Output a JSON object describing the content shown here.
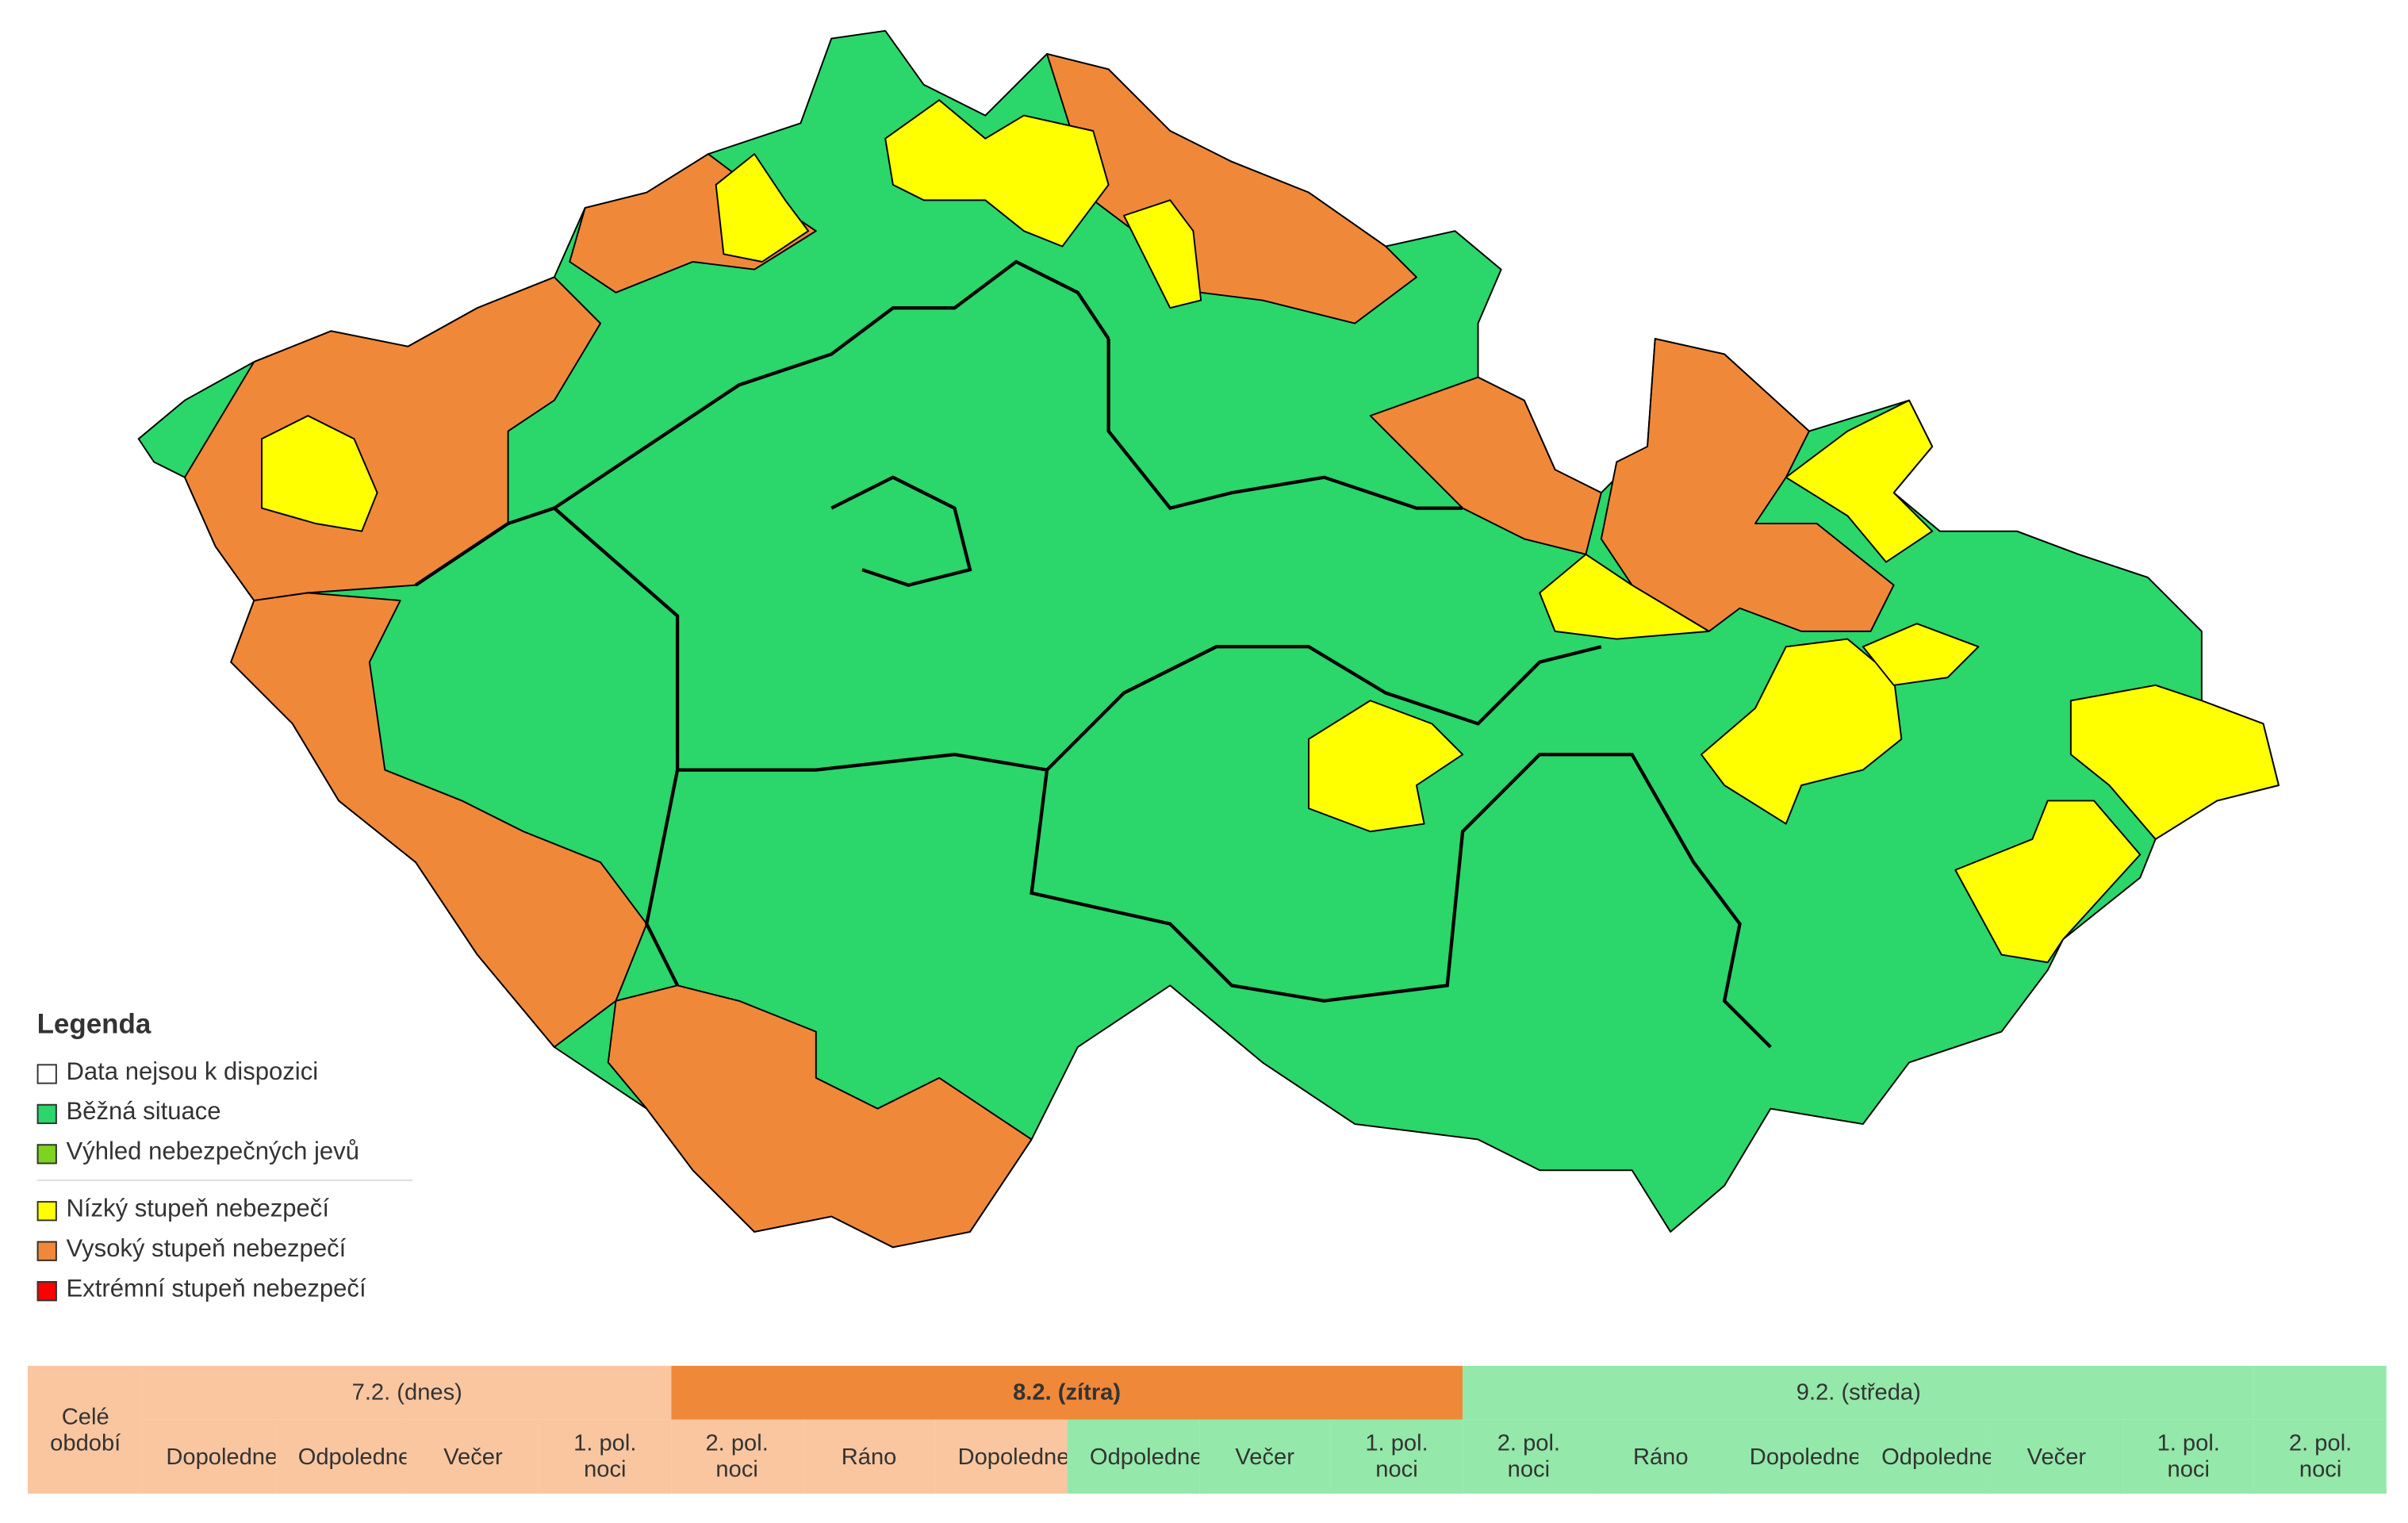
{
  "legend": {
    "title": "Legenda",
    "items": [
      {
        "label": "Data nejsou k dispozici",
        "color": "#ffffff"
      },
      {
        "label": "Běžná situace",
        "color": "#2bd66a"
      },
      {
        "label": "Výhled nebezpečných jevů",
        "color": "#7ed321"
      },
      {
        "label": "Nízký stupeň nebezpečí",
        "color": "#ffff00"
      },
      {
        "label": "Vysoký stupeň nebezpečí",
        "color": "#f0883a"
      },
      {
        "label": "Extrémní stupeň nebezpečí",
        "color": "#ff0000"
      }
    ]
  },
  "table": {
    "corner": "Celé období",
    "days": [
      {
        "label": "7.2. (dnes)"
      },
      {
        "label": "8.2. (zítra)"
      },
      {
        "label": "9.2. (středa)"
      }
    ],
    "periods": [
      "Dopoledne",
      "Odpoledne",
      "Večer",
      "1. pol. noci",
      "2. pol. noci",
      "Ráno",
      "Dopoledne",
      "Odpoledne",
      "Večer",
      "1. pol. noci",
      "2. pol. noci",
      "Ráno",
      "Dopoledne",
      "Odpoledne",
      "Večer",
      "1. pol. noci",
      "2. pol. noci"
    ]
  }
}
